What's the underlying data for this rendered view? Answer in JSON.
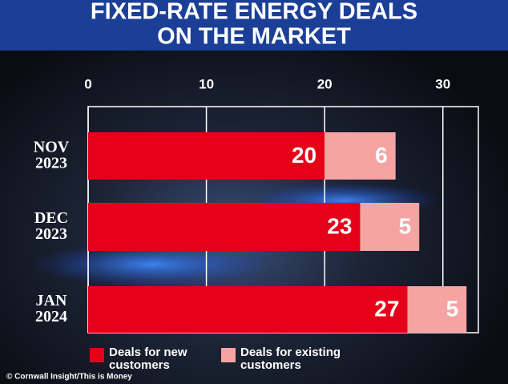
{
  "chart_data": {
    "type": "stacked-bar-horizontal",
    "title": "FIXED-RATE ENERGY DEALS ON THE MARKET",
    "categories": [
      "NOV 2023",
      "DEC 2023",
      "JAN 2024"
    ],
    "series": [
      {
        "name": "Deals for new customers",
        "color": "#e60019",
        "values": [
          20,
          23,
          27
        ]
      },
      {
        "name": "Deals for existing customers",
        "color": "#f5a3a3",
        "values": [
          6,
          5,
          5
        ]
      }
    ],
    "xlim": [
      0,
      33
    ],
    "xticks": [
      0,
      10,
      20,
      30
    ],
    "grid": true,
    "source": "© Cornwall Insight/This is Money"
  }
}
